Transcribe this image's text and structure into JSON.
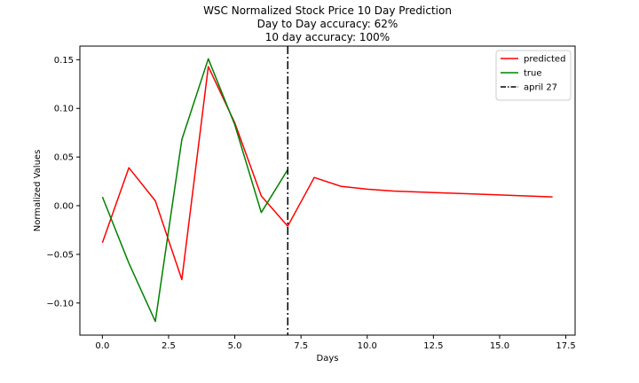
{
  "chart_data": {
    "type": "line",
    "title_lines": [
      "WSC Normalized Stock Price 10 Day Prediction",
      "Day to Day accuracy: 62%",
      "10 day accuracy: 100%"
    ],
    "xlabel": "Days",
    "ylabel": "Normalized Values",
    "xlim": [
      -0.85,
      17.85
    ],
    "ylim": [
      -0.133,
      0.164
    ],
    "xticks": [
      0.0,
      2.5,
      5.0,
      7.5,
      10.0,
      12.5,
      15.0,
      17.5
    ],
    "xtick_labels": [
      "0.0",
      "2.5",
      "5.0",
      "7.5",
      "10.0",
      "12.5",
      "15.0",
      "17.5"
    ],
    "yticks": [
      -0.1,
      -0.05,
      0.0,
      0.05,
      0.1,
      0.15
    ],
    "ytick_labels": [
      "−0.10",
      "−0.05",
      "0.00",
      "0.05",
      "0.10",
      "0.15"
    ],
    "grid": false,
    "legend_position": "top-right",
    "series": [
      {
        "name": "predicted",
        "color": "#ff0000",
        "style": "solid",
        "x": [
          0,
          1,
          2,
          3,
          4,
          5,
          6,
          7,
          8,
          9,
          10,
          11,
          12,
          13,
          14,
          15,
          16,
          17
        ],
        "y": [
          -0.038,
          0.039,
          0.005,
          -0.076,
          0.143,
          0.085,
          0.01,
          -0.021,
          0.029,
          0.02,
          0.017,
          0.015,
          0.014,
          0.013,
          0.012,
          0.011,
          0.01,
          0.009
        ]
      },
      {
        "name": "true",
        "color": "#008000",
        "style": "solid",
        "x": [
          0,
          1,
          2,
          3,
          4,
          5,
          6,
          7
        ],
        "y": [
          0.009,
          -0.059,
          -0.119,
          0.068,
          0.151,
          0.083,
          -0.007,
          0.037
        ]
      }
    ],
    "vlines": [
      {
        "name": "april 27",
        "x": 7,
        "color": "#000000",
        "style": "dashdot"
      }
    ]
  }
}
